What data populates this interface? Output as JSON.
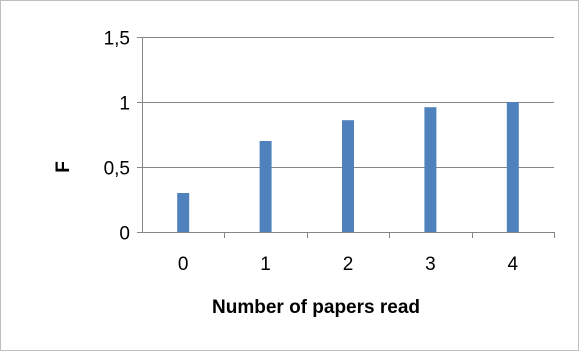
{
  "chart_data": {
    "type": "bar",
    "categories": [
      "0",
      "1",
      "2",
      "3",
      "4"
    ],
    "values": [
      0.3,
      0.7,
      0.86,
      0.96,
      1.0
    ],
    "title": "",
    "xlabel": "Number of papers read",
    "ylabel": "F",
    "ylim": [
      0,
      1.5
    ],
    "yticks": [
      0,
      0.5,
      1,
      1.5
    ],
    "ytick_labels": [
      "0",
      "0,5",
      "1",
      "1,5"
    ],
    "grid": true,
    "legend": "none",
    "bar_color": "#4f81bd"
  }
}
